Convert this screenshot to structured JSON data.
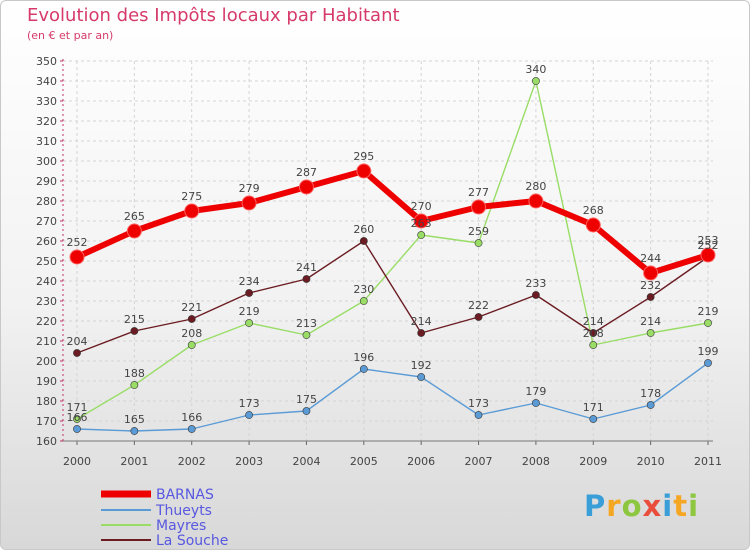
{
  "chart_data": {
    "type": "line",
    "title": "Evolution des Impôts locaux par Habitant",
    "subtitle": "(en € et par an)",
    "x": [
      "2000",
      "2001",
      "2002",
      "2003",
      "2004",
      "2005",
      "2006",
      "2007",
      "2008",
      "2009",
      "2010",
      "2011"
    ],
    "ylim": [
      160,
      350
    ],
    "ytick_step": 10,
    "grid": true,
    "legend_position": "bottom-left",
    "series": [
      {
        "name": "BARNAS",
        "color": "#ee0000",
        "values": [
          252,
          265,
          275,
          279,
          287,
          295,
          270,
          277,
          280,
          268,
          244,
          253
        ]
      },
      {
        "name": "Thueyts",
        "color": "#5b9bd5",
        "values": [
          166,
          165,
          166,
          173,
          175,
          196,
          192,
          173,
          179,
          171,
          178,
          199
        ]
      },
      {
        "name": "Mayres",
        "color": "#99dd66",
        "values": [
          171,
          188,
          208,
          219,
          213,
          230,
          263,
          259,
          340,
          208,
          214,
          219
        ]
      },
      {
        "name": "La Souche",
        "color": "#6b1c22",
        "values": [
          204,
          215,
          221,
          234,
          241,
          260,
          214,
          222,
          233,
          214,
          232,
          252
        ]
      }
    ]
  },
  "logo": {
    "letters": [
      "P",
      "r",
      "o",
      "x",
      "i",
      "t",
      "i"
    ],
    "colors": [
      "#3a9fd8",
      "#f5a623",
      "#8dc63f",
      "#e94e3c",
      "#3a9fd8",
      "#f5a623",
      "#8dc63f"
    ]
  }
}
